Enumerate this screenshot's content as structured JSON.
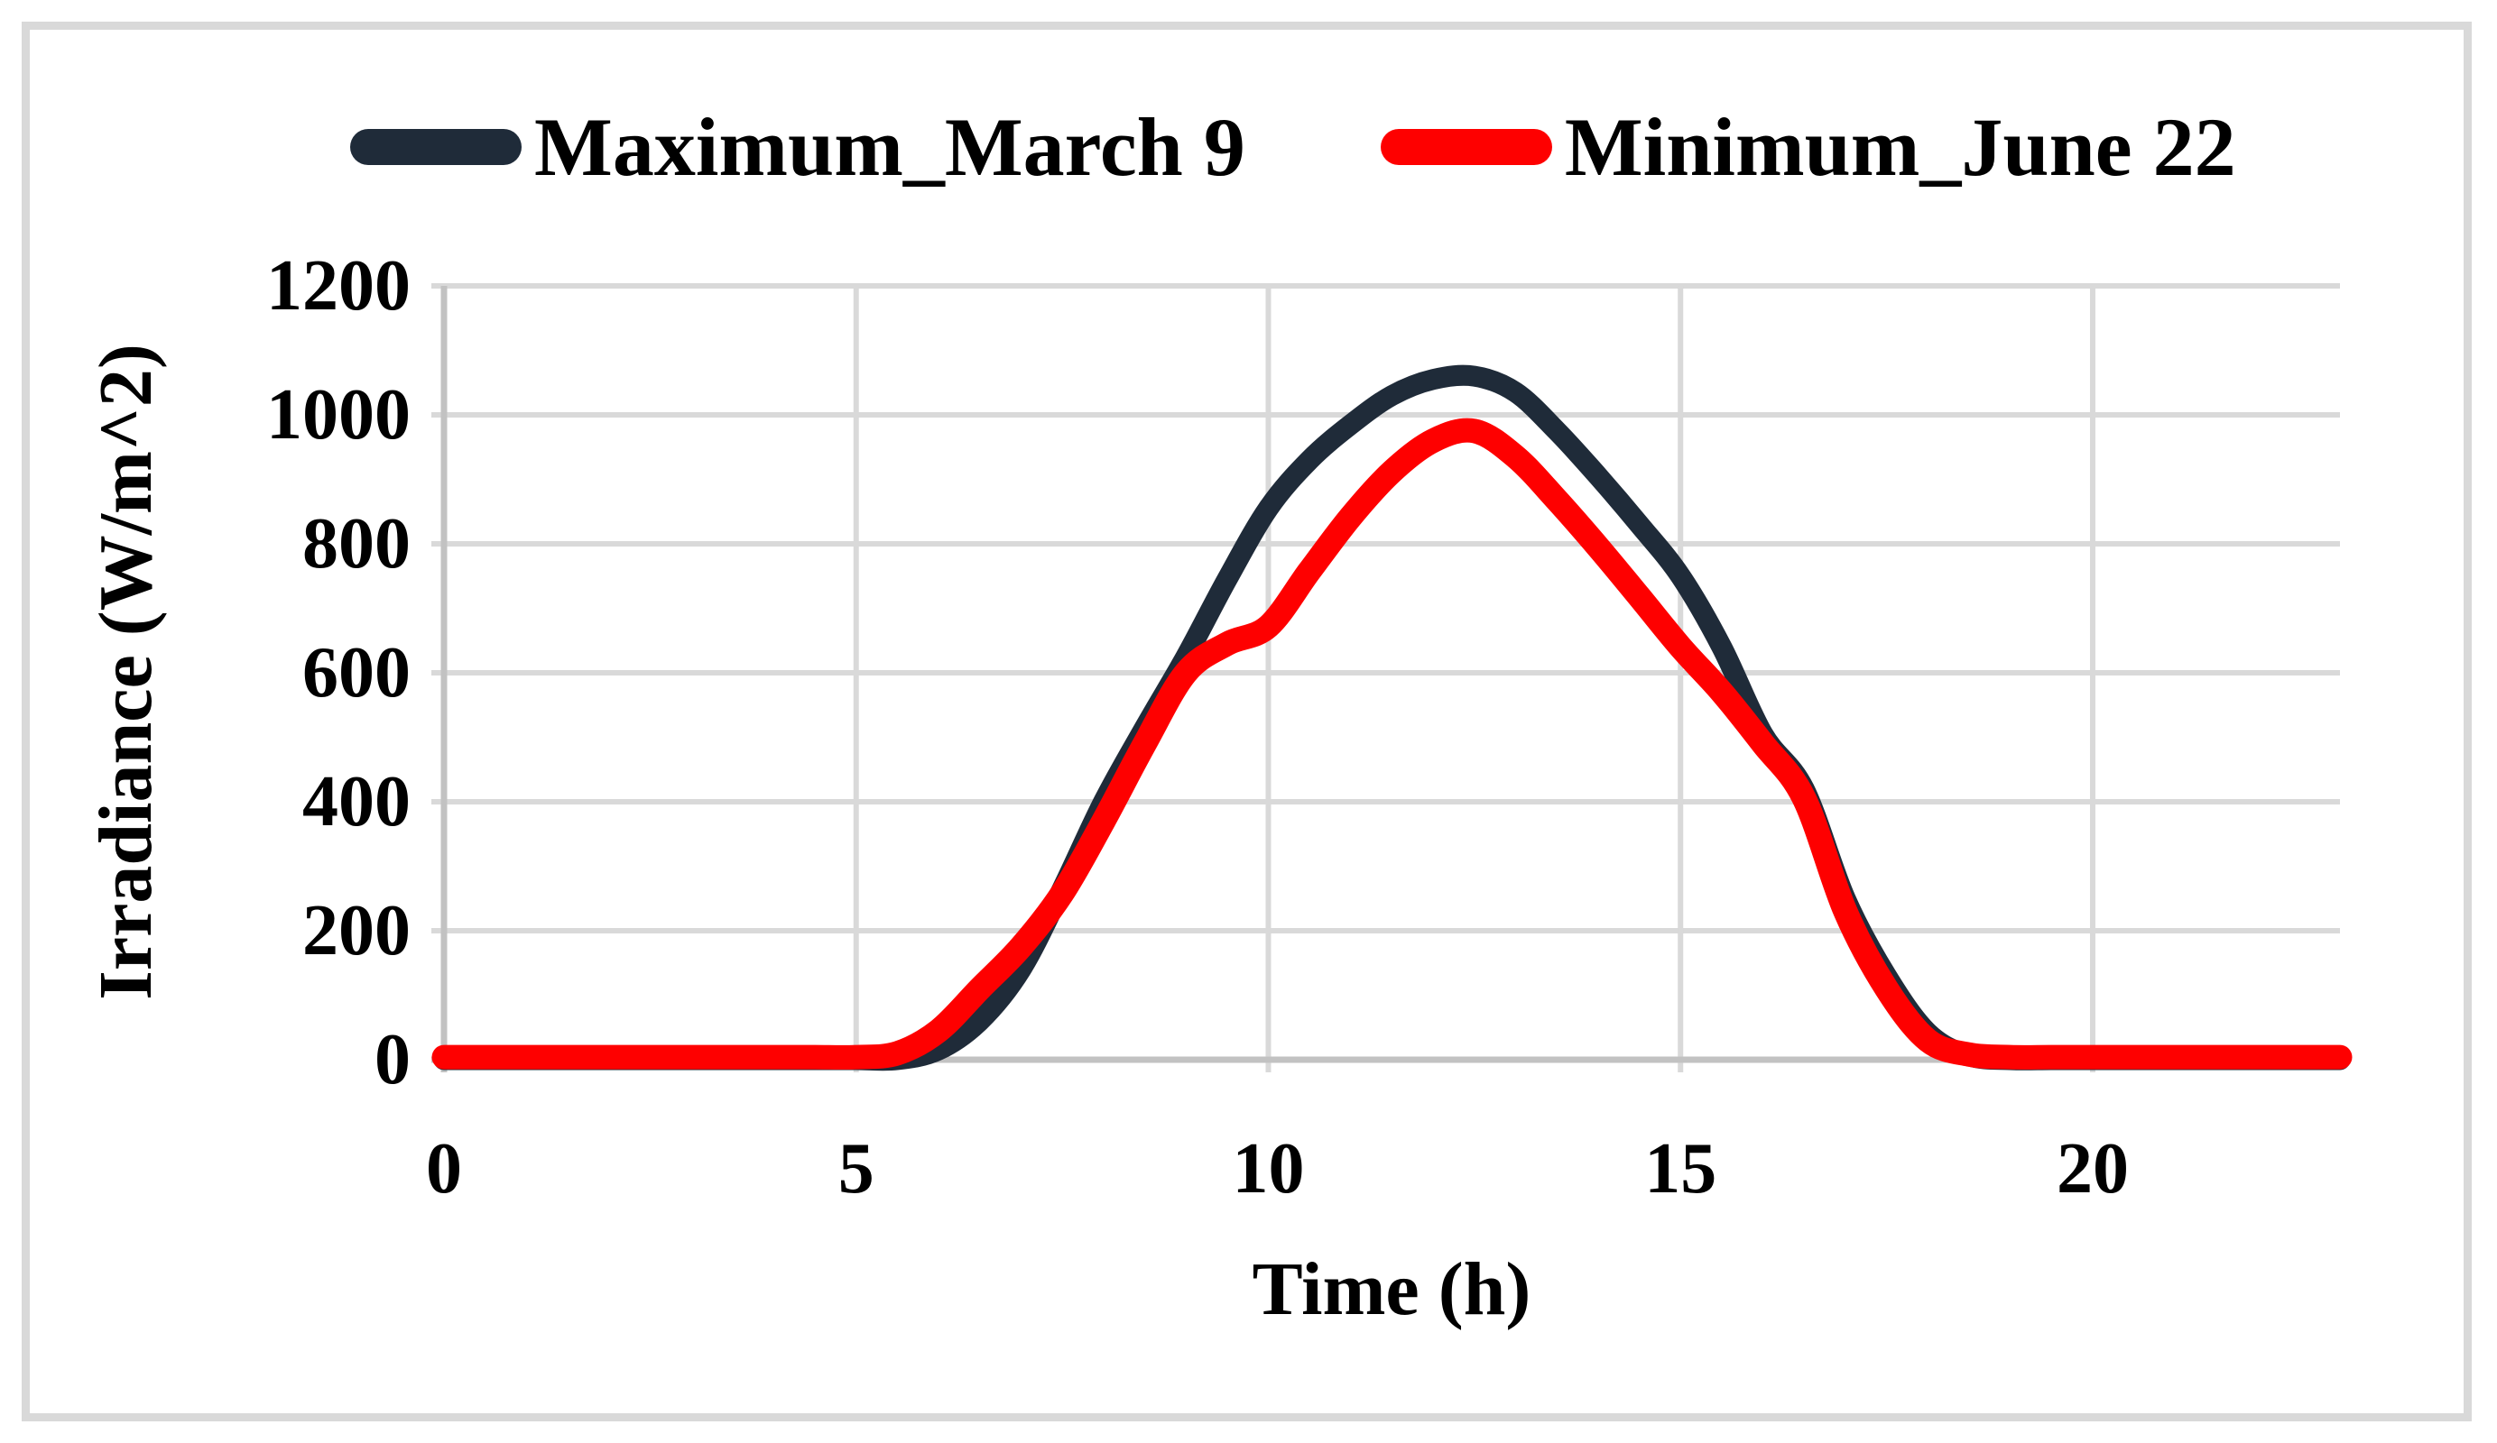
{
  "legend": {
    "items": [
      {
        "label": "Maximum_March 9",
        "color": "#1f2b39"
      },
      {
        "label": "Minimum_June 22",
        "color": "#fe0000"
      }
    ]
  },
  "axes": {
    "x": {
      "title": "Time (h)",
      "ticks": [
        0,
        5,
        10,
        15,
        20
      ],
      "min": 0,
      "max": 23
    },
    "y": {
      "title": "Irradiance (W/m^2)",
      "ticks": [
        0,
        200,
        400,
        600,
        800,
        1000,
        1200
      ],
      "min": 0,
      "max": 1200
    }
  },
  "colors": {
    "grid": "#d9d9d9",
    "axis": "#c2c2c2",
    "border": "#d9d9d9",
    "text": "#000000",
    "background": "#ffffff",
    "series_max": "#1f2b39",
    "series_min": "#fe0000"
  },
  "chart_data": {
    "type": "line",
    "title": "",
    "xlabel": "Time (h)",
    "ylabel": "Irradiance (W/m^2)",
    "xlim": [
      0,
      23
    ],
    "ylim": [
      0,
      1200
    ],
    "grid": true,
    "legend_position": "top",
    "x": [
      0,
      0.5,
      1,
      1.5,
      2,
      2.5,
      3,
      3.5,
      4,
      4.5,
      5,
      5.5,
      6,
      6.5,
      7,
      7.5,
      8,
      8.5,
      9,
      9.5,
      10,
      10.5,
      11,
      11.5,
      12,
      12.5,
      13,
      13.5,
      14,
      14.5,
      15,
      15.5,
      16,
      16.5,
      17,
      17.5,
      18,
      18.5,
      19,
      19.5,
      20,
      20.5,
      21,
      21.5,
      22,
      22.5,
      23
    ],
    "series": [
      {
        "name": "Maximum_March 9",
        "color": "#1f2b39",
        "stroke_width": 23,
        "values": [
          0,
          0,
          0,
          0,
          0,
          0,
          0,
          0,
          0,
          0,
          0,
          0,
          15,
          60,
          140,
          265,
          400,
          515,
          625,
          745,
          855,
          930,
          985,
          1030,
          1055,
          1060,
          1035,
          975,
          905,
          830,
          750,
          640,
          505,
          420,
          250,
          130,
          42,
          6,
          0,
          0,
          0,
          0,
          0,
          0,
          0,
          0,
          0
        ]
      },
      {
        "name": "Minimum_June 22",
        "color": "#fe0000",
        "stroke_width": 27,
        "values": [
          4,
          4,
          4,
          4,
          4,
          4,
          4,
          4,
          4,
          4,
          4,
          10,
          45,
          110,
          175,
          258,
          370,
          490,
          600,
          645,
          672,
          758,
          842,
          912,
          960,
          975,
          935,
          868,
          795,
          718,
          640,
          570,
          490,
          405,
          230,
          110,
          30,
          8,
          4,
          4,
          4,
          4,
          4,
          4,
          4,
          4,
          4
        ]
      }
    ]
  }
}
